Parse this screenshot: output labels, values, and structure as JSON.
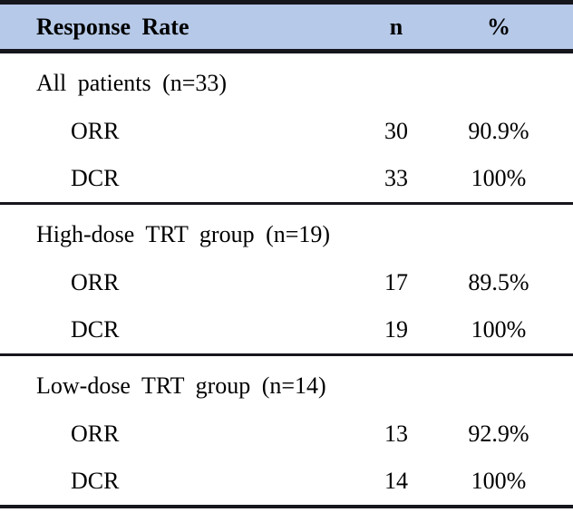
{
  "table": {
    "headers": {
      "label": "Response Rate",
      "n": "n",
      "pct": "%"
    },
    "sections": [
      {
        "group": "All patients (n=33)",
        "rows": [
          {
            "label": "ORR",
            "n": "30",
            "pct": "90.9%"
          },
          {
            "label": "DCR",
            "n": "33",
            "pct": "100%"
          }
        ]
      },
      {
        "group": "High-dose TRT group (n=19)",
        "rows": [
          {
            "label": "ORR",
            "n": "17",
            "pct": "89.5%"
          },
          {
            "label": "DCR",
            "n": "19",
            "pct": "100%"
          }
        ]
      },
      {
        "group": "Low-dose TRT group (n=14)",
        "rows": [
          {
            "label": "ORR",
            "n": "13",
            "pct": "92.9%"
          },
          {
            "label": "DCR",
            "n": "14",
            "pct": "100%"
          }
        ]
      }
    ],
    "colors": {
      "header_bg": "#b6c9e8",
      "rule": "#16161d",
      "text": "#000000"
    }
  }
}
